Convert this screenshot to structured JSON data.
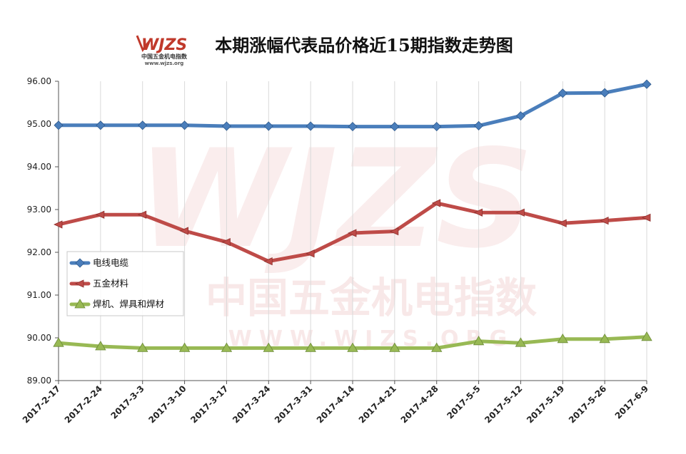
{
  "logo": {
    "mark": "WJZS",
    "cn": "中国五金机电指数",
    "url": "www.wjzs.org"
  },
  "watermark": {
    "mark": "WJZS",
    "cn": "中国五金机电指数",
    "url": "WWW.WJZS.ORG"
  },
  "chart_data": {
    "type": "line",
    "title": "本期涨幅代表品价格近15期指数走势图",
    "xlabel": "",
    "ylabel": "",
    "categories": [
      "2017-2-17",
      "2017-2-24",
      "2017-3-3",
      "2017-3-10",
      "2017-3-17",
      "2017-3-24",
      "2017-3-31",
      "2017-4-14",
      "2017-4-21",
      "2017-4-28",
      "2017-5-5",
      "2017-5-12",
      "2017-5-19",
      "2017-5-26",
      "2017-6-9"
    ],
    "ylim": [
      89.0,
      96.0
    ],
    "yticks": [
      "89.00",
      "90.00",
      "91.00",
      "92.00",
      "93.00",
      "94.00",
      "95.00",
      "96.00"
    ],
    "grid": "vertical",
    "legend_position": "left-middle",
    "series": [
      {
        "name": "电线电缆",
        "color": "#4a7ebb",
        "marker": "diamond",
        "values": [
          94.97,
          94.97,
          94.97,
          94.97,
          94.95,
          94.95,
          94.95,
          94.94,
          94.94,
          94.94,
          94.96,
          95.19,
          95.72,
          95.73,
          95.93
        ]
      },
      {
        "name": "五金材料",
        "color": "#be4b48",
        "marker": "arrow",
        "values": [
          92.65,
          92.88,
          92.88,
          92.5,
          92.24,
          91.79,
          91.97,
          92.45,
          92.49,
          93.15,
          92.93,
          92.93,
          92.68,
          92.74,
          92.81
        ]
      },
      {
        "name": "焊机、焊具和焊材",
        "color": "#98b954",
        "marker": "triangle",
        "values": [
          89.88,
          89.8,
          89.76,
          89.76,
          89.76,
          89.76,
          89.76,
          89.76,
          89.76,
          89.76,
          89.92,
          89.88,
          89.97,
          89.97,
          90.02
        ]
      }
    ]
  }
}
